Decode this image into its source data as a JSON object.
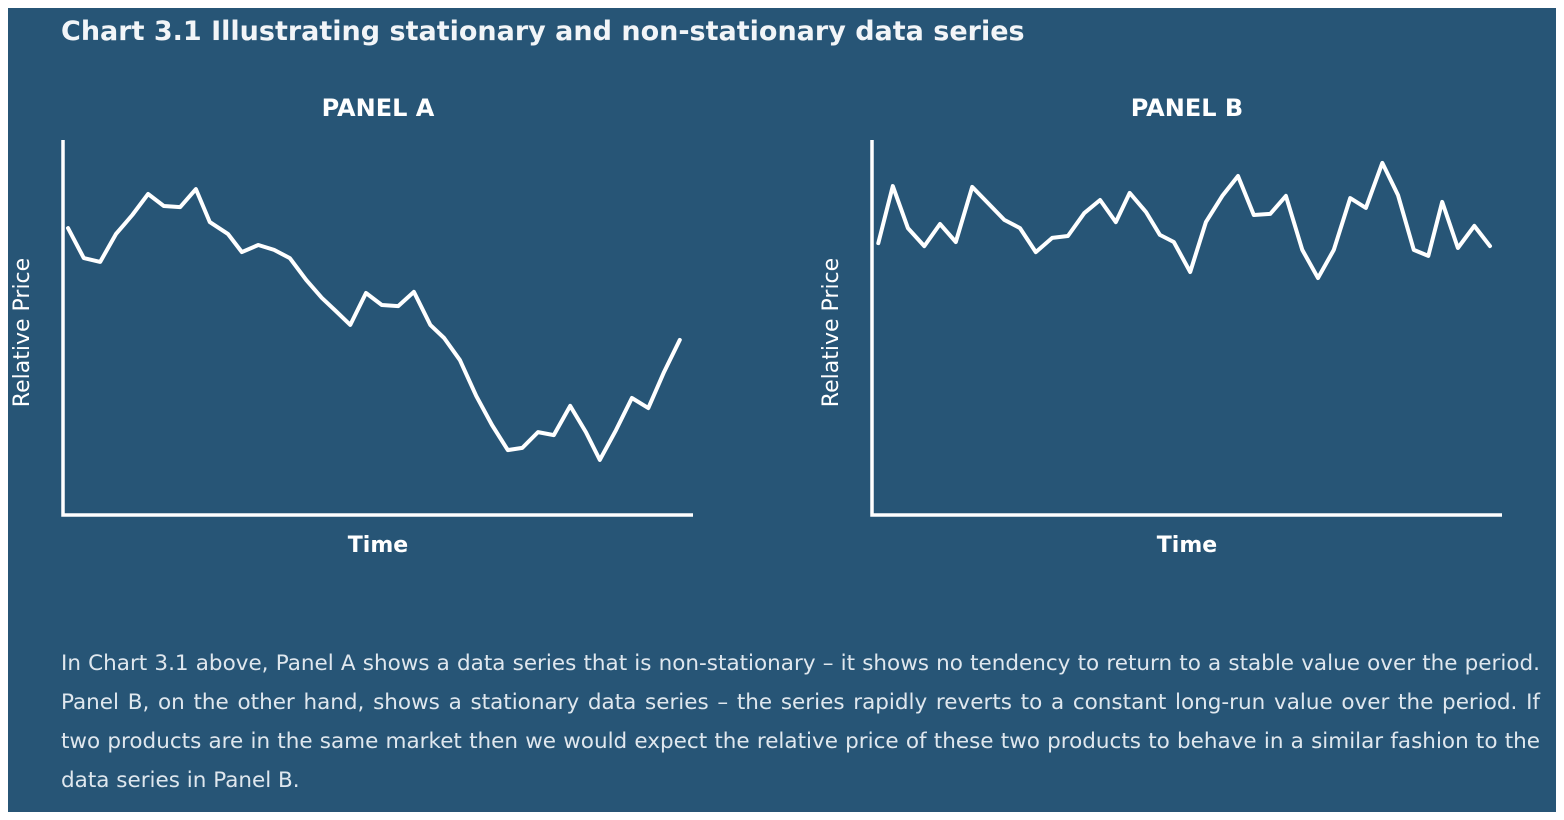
{
  "title": "Chart 3.1 Illustrating stationary and non-stationary data series",
  "description": "In Chart 3.1 above, Panel A shows a data series that is non-stationary – it shows no tendency to return to a stable value over the period. Panel B, on the other hand, shows a stationary data series – the series rapidly reverts to a constant long-run value over the period. If two products are in the same market then we would expect the relative price of these two products to behave in a similar fashion to the data series in Panel B.",
  "chart_data": [
    {
      "type": "line",
      "title": "PANEL A",
      "x_label": "Time",
      "y_label": "Relative Price",
      "color": "#ffffff",
      "xlim": [
        0,
        100
      ],
      "ylim": [
        0,
        100
      ],
      "x": [
        0.8,
        3.3,
        5.9,
        8.4,
        11,
        13.5,
        16,
        18.6,
        21.1,
        23.3,
        26.2,
        28.4,
        31,
        33.5,
        36,
        38.6,
        41.1,
        43.3,
        45.6,
        48.1,
        50.6,
        53.2,
        55.7,
        58.3,
        60.5,
        63,
        65.6,
        68.1,
        70.6,
        72.9,
        75.4,
        77.9,
        80.5,
        83,
        85.2,
        87.8,
        90.3,
        92.9,
        95.4,
        97.9
      ],
      "values": [
        76.5,
        68.5,
        67.5,
        74.9,
        80,
        85.6,
        82.4,
        82.1,
        86.9,
        78.1,
        74.9,
        70.1,
        72,
        70.7,
        68.5,
        62.7,
        57.9,
        54.4,
        50.7,
        59.2,
        56,
        55.7,
        59.5,
        50.7,
        47.2,
        41.3,
        31.7,
        24,
        17.3,
        17.9,
        22.1,
        21.3,
        29.1,
        22.1,
        14.7,
        22.7,
        31.2,
        28.5,
        38.1,
        46.7
      ]
    },
    {
      "type": "line",
      "title": "PANEL B",
      "x_label": "Time",
      "y_label": "Relative Price",
      "color": "#ffffff",
      "xlim": [
        0,
        100
      ],
      "ylim": [
        0,
        100
      ],
      "x": [
        1,
        3.3,
        5.7,
        8.3,
        10.8,
        13.3,
        15.9,
        18.4,
        21,
        23.5,
        26,
        28.6,
        31.1,
        33.7,
        36.2,
        38.7,
        40.9,
        43.5,
        45.7,
        47.9,
        50.5,
        53,
        55.6,
        58.1,
        60.6,
        63.2,
        65.7,
        68.3,
        70.8,
        73.3,
        75.9,
        78.4,
        81,
        83.5,
        86,
        88.3,
        90.5,
        93,
        95.6,
        98.1
      ],
      "values": [
        72.5,
        87.7,
        76.5,
        71.7,
        77.6,
        72.8,
        87.5,
        83.2,
        78.7,
        76.5,
        70.1,
        73.9,
        74.4,
        80.5,
        84,
        78.1,
        85.9,
        80.8,
        74.7,
        72.8,
        64.8,
        78.1,
        85.1,
        90.4,
        80,
        80.3,
        85.1,
        70.7,
        63.2,
        70.7,
        84.5,
        81.9,
        93.9,
        85.3,
        70.7,
        69.1,
        83.5,
        71.2,
        77.1,
        71.7
      ]
    }
  ]
}
